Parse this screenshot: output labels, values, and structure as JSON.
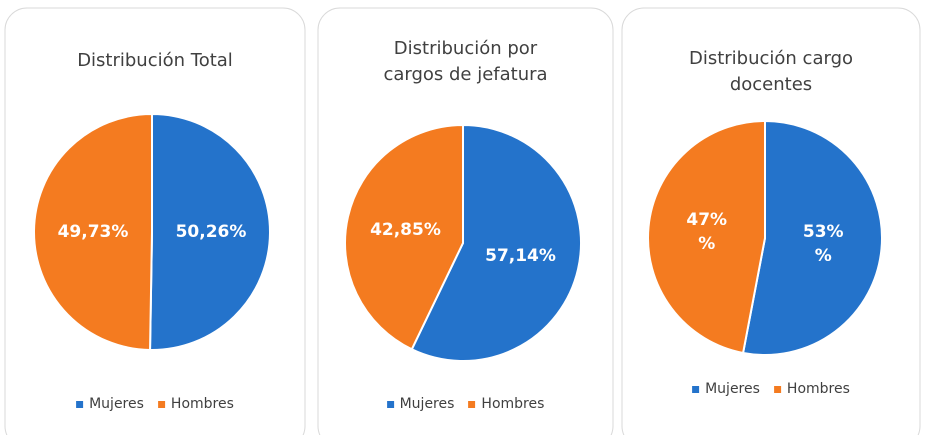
{
  "chart_data": [
    {
      "type": "pie",
      "title": "Distribución Total",
      "categories": [
        "Mujeres",
        "Hombres"
      ],
      "values": [
        50.26,
        49.73
      ],
      "value_labels": [
        "50,26%",
        "49,73%"
      ],
      "colors": [
        "#2473cb",
        "#f47b20"
      ]
    },
    {
      "type": "pie",
      "title": "Distribución por cargos de jefatura",
      "categories": [
        "Mujeres",
        "Hombres"
      ],
      "values": [
        57.14,
        42.85
      ],
      "value_labels": [
        "57,14%",
        "42,85%"
      ],
      "colors": [
        "#2473cb",
        "#f47b20"
      ]
    },
    {
      "type": "pie",
      "title": "Distribución cargo docentes",
      "categories": [
        "Mujeres",
        "Hombres"
      ],
      "values": [
        53,
        47
      ],
      "value_labels": [
        "53%\n%",
        "47%\n%"
      ],
      "colors": [
        "#2473cb",
        "#f47b20"
      ]
    }
  ]
}
